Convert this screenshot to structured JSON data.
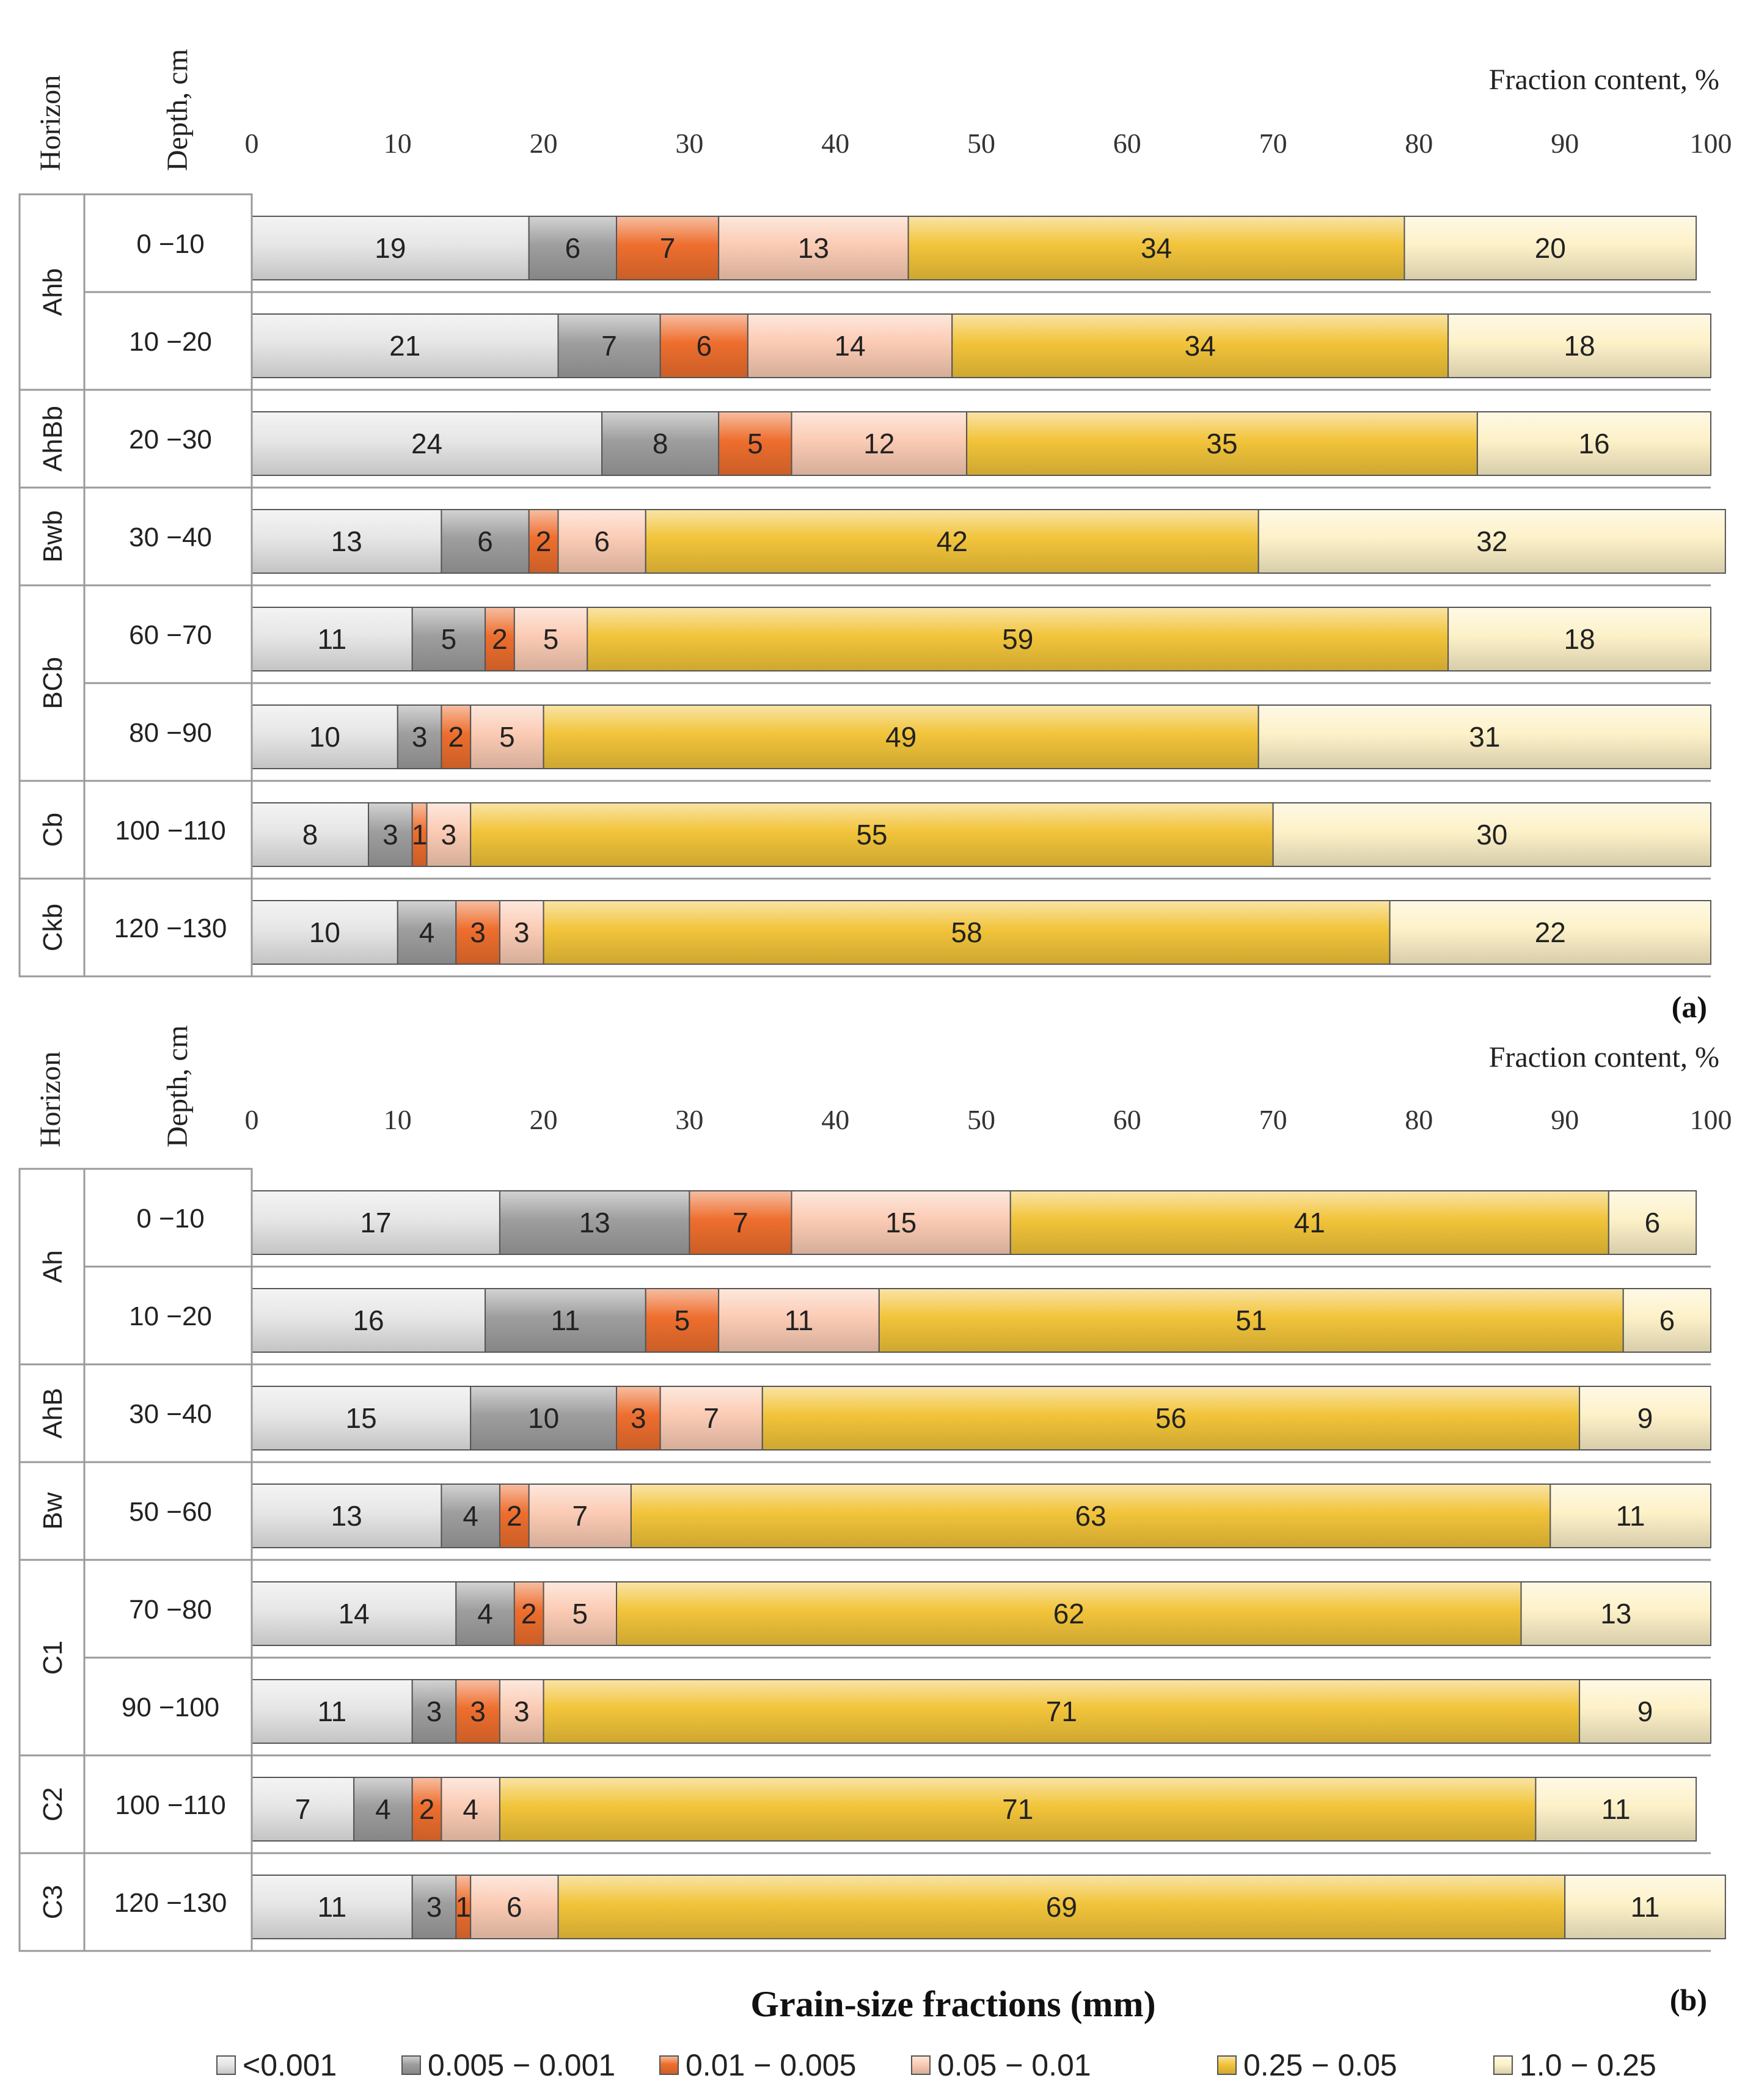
{
  "chart_data": {
    "type": "bar",
    "orientation": "horizontal",
    "stacked": true,
    "xlim": [
      0,
      100
    ],
    "xticks": [
      0,
      10,
      20,
      30,
      40,
      50,
      60,
      70,
      80,
      90,
      100
    ],
    "column_headers": {
      "horizon": "Horizon",
      "depth": "Depth, cm"
    },
    "axis_title": "Fraction content, %",
    "xlabel": "Grain-size fractions (mm)",
    "fractions": [
      {
        "name": "<0.001",
        "color": "#e6e6e6"
      },
      {
        "name": "0.005 − 0.001",
        "color": "#9e9e9e"
      },
      {
        "name": "0.01 − 0.005",
        "color": "#ee6e2e"
      },
      {
        "name": "0.05 − 0.01",
        "color": "#fbcbb4"
      },
      {
        "name": "0.25 − 0.05",
        "color": "#f2c43a"
      },
      {
        "name": "1.0 − 0.25",
        "color": "#fdf1c8"
      }
    ],
    "panels": [
      {
        "label": "(a)",
        "horizons": [
          {
            "name": "Ahb",
            "rows": [
              {
                "depth": "0 −10",
                "values": [
                  19,
                  6,
                  7,
                  13,
                  34,
                  20
                ]
              },
              {
                "depth": "10 −20",
                "values": [
                  21,
                  7,
                  6,
                  14,
                  34,
                  18
                ]
              }
            ]
          },
          {
            "name": "AhBb",
            "rows": [
              {
                "depth": "20 −30",
                "values": [
                  24,
                  8,
                  5,
                  12,
                  35,
                  16
                ]
              }
            ]
          },
          {
            "name": "Bwb",
            "rows": [
              {
                "depth": "30 −40",
                "values": [
                  13,
                  6,
                  2,
                  6,
                  42,
                  32
                ]
              }
            ]
          },
          {
            "name": "BCb",
            "rows": [
              {
                "depth": "60 −70",
                "values": [
                  11,
                  5,
                  2,
                  5,
                  59,
                  18
                ]
              },
              {
                "depth": "80 −90",
                "values": [
                  10,
                  3,
                  2,
                  5,
                  49,
                  31
                ]
              }
            ]
          },
          {
            "name": "Cb",
            "rows": [
              {
                "depth": "100 −110",
                "values": [
                  8,
                  3,
                  1,
                  3,
                  55,
                  30
                ]
              }
            ]
          },
          {
            "name": "Ckb",
            "rows": [
              {
                "depth": "120 −130",
                "values": [
                  10,
                  4,
                  3,
                  3,
                  58,
                  22
                ]
              }
            ]
          }
        ]
      },
      {
        "label": "(b)",
        "horizons": [
          {
            "name": "Ah",
            "rows": [
              {
                "depth": "0 −10",
                "values": [
                  17,
                  13,
                  7,
                  15,
                  41,
                  6
                ]
              },
              {
                "depth": "10 −20",
                "values": [
                  16,
                  11,
                  5,
                  11,
                  51,
                  6
                ]
              }
            ]
          },
          {
            "name": "AhB",
            "rows": [
              {
                "depth": "30 −40",
                "values": [
                  15,
                  10,
                  3,
                  7,
                  56,
                  9
                ]
              }
            ]
          },
          {
            "name": "Bw",
            "rows": [
              {
                "depth": "50 −60",
                "values": [
                  13,
                  4,
                  2,
                  7,
                  63,
                  11
                ]
              }
            ]
          },
          {
            "name": "C1",
            "rows": [
              {
                "depth": "70 −80",
                "values": [
                  14,
                  4,
                  2,
                  5,
                  62,
                  13
                ]
              },
              {
                "depth": "90 −100",
                "values": [
                  11,
                  3,
                  3,
                  3,
                  71,
                  9
                ]
              }
            ]
          },
          {
            "name": "C2",
            "rows": [
              {
                "depth": "100 −110",
                "values": [
                  7,
                  4,
                  2,
                  4,
                  71,
                  11
                ]
              }
            ]
          },
          {
            "name": "C3",
            "rows": [
              {
                "depth": "120 −130",
                "values": [
                  11,
                  3,
                  1,
                  6,
                  69,
                  11
                ]
              }
            ]
          }
        ]
      }
    ]
  }
}
